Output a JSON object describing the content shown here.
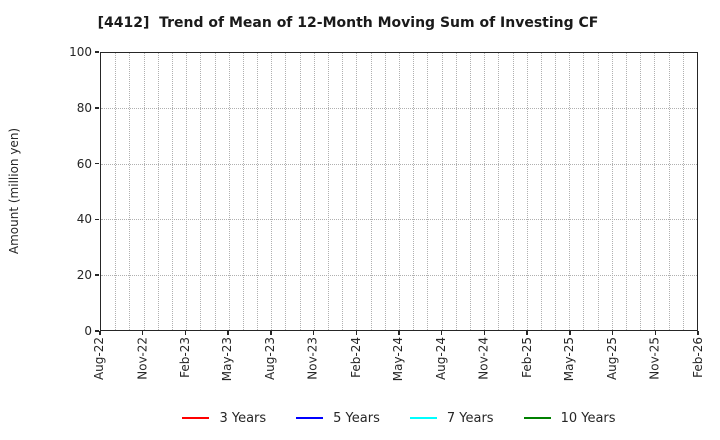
{
  "figure": {
    "title": "[4412]  Trend of Mean of 12-Month Moving Sum of Investing CF",
    "ylabel": "Amount (million yen)"
  },
  "chart_data": {
    "type": "line",
    "title": "[4412]  Trend of Mean of 12-Month Moving Sum of Investing CF",
    "xlabel": "",
    "ylabel": "Amount (million yen)",
    "ylim": [
      0,
      100
    ],
    "yticks": [
      0,
      20,
      40,
      60,
      80,
      100
    ],
    "x_tick_labels": [
      "Aug-22",
      "Nov-22",
      "Feb-23",
      "May-23",
      "Aug-23",
      "Nov-23",
      "Feb-24",
      "May-24",
      "Aug-24",
      "Nov-24",
      "Feb-25",
      "May-25",
      "Aug-25",
      "Nov-25",
      "Feb-26"
    ],
    "x_months_per_label": 3,
    "x_total_months": 42,
    "grid": {
      "visible": true,
      "style": "dotted",
      "color": "#b0b0b0",
      "x_interval": "monthly"
    },
    "legend_position": "bottom",
    "series": [
      {
        "name": "3 Years",
        "color": "#ff0000",
        "values": []
      },
      {
        "name": "5 Years",
        "color": "#0000ff",
        "values": []
      },
      {
        "name": "7 Years",
        "color": "#00ffff",
        "values": []
      },
      {
        "name": "10 Years",
        "color": "#008000",
        "values": []
      }
    ],
    "visible_data_points": "none - plot area is empty"
  },
  "colors": {
    "background": "#ffffff",
    "axis": "#262626",
    "grid": "#b0b0b0",
    "title_text": "#1a1a1a",
    "tick_text": "#262626"
  }
}
